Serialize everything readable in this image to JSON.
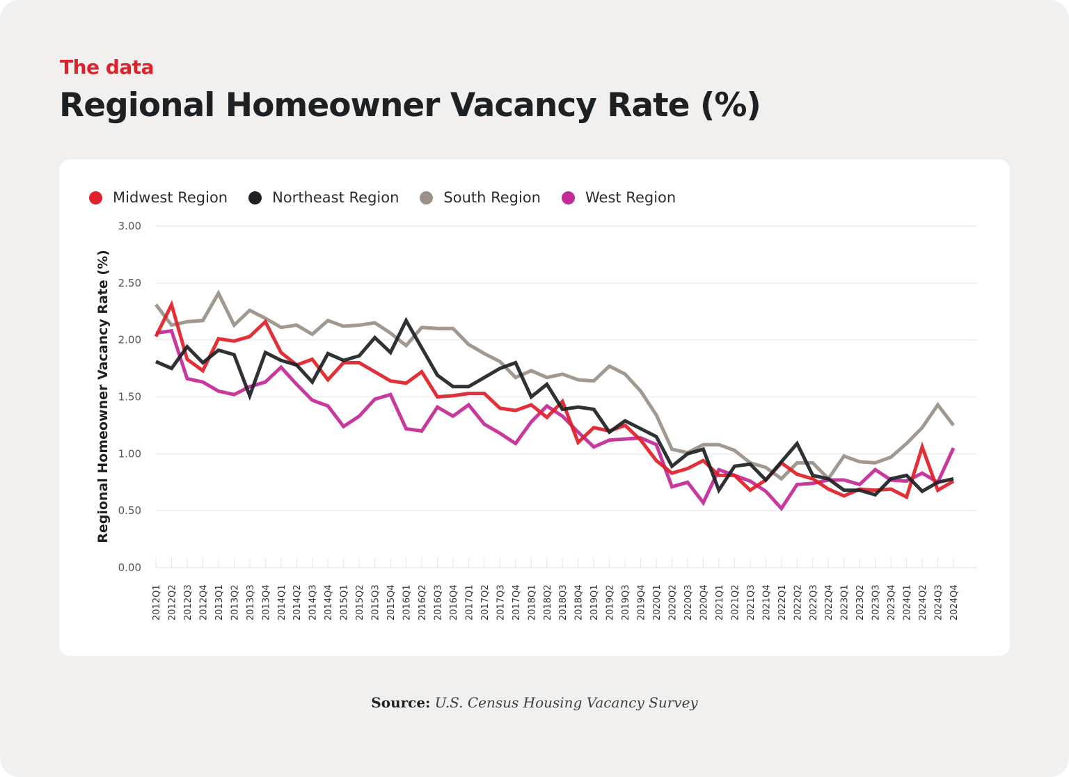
{
  "header": {
    "kicker": "The data",
    "title": "Regional Homeowner Vacancy Rate (%)"
  },
  "source": {
    "label": "Source:",
    "text": "U.S. Census Housing Vacancy Survey"
  },
  "colors": {
    "Midwest Region": "#e0202a",
    "Northeast Region": "#1e2226",
    "South Region": "#9a9088",
    "West Region": "#c42a96"
  },
  "chart_data": {
    "type": "line",
    "title": "Regional Homeowner Vacancy Rate (%)",
    "xlabel": "",
    "ylabel": "Regional Homeowner Vacancy Rate (%)",
    "ylim": [
      0,
      3
    ],
    "yticks": [
      "0.00",
      "0.50",
      "1.00",
      "1.50",
      "2.00",
      "2.50",
      "3.00"
    ],
    "grid": "horizontal",
    "legend": "top-left",
    "categories": [
      "2012Q1",
      "2012Q2",
      "2012Q3",
      "2012Q4",
      "2013Q1",
      "2013Q2",
      "2013Q3",
      "2013Q4",
      "2014Q1",
      "2014Q2",
      "2014Q3",
      "2014Q4",
      "2015Q1",
      "2015Q2",
      "2015Q3",
      "2015Q4",
      "2016Q1",
      "2016Q2",
      "2016Q3",
      "2016Q4",
      "2017Q1",
      "2017Q2",
      "2017Q3",
      "2017Q4",
      "2018Q1",
      "2018Q2",
      "2018Q3",
      "2018Q4",
      "2019Q1",
      "2019Q2",
      "2019Q3",
      "2019Q4",
      "2020Q1",
      "2020Q2",
      "2020Q3",
      "2020Q4",
      "2021Q1",
      "2021Q2",
      "2021Q3",
      "2021Q4",
      "2022Q1",
      "2022Q2",
      "2022Q3",
      "2022Q4",
      "2023Q1",
      "2023Q2",
      "2023Q3",
      "2023Q4",
      "2024Q1",
      "2024Q2",
      "2024Q3",
      "2024Q4"
    ],
    "series": [
      {
        "name": "Midwest Region",
        "values": [
          2.03,
          2.31,
          1.83,
          1.73,
          2.01,
          1.99,
          2.03,
          2.16,
          1.89,
          1.78,
          1.83,
          1.65,
          1.8,
          1.8,
          1.72,
          1.64,
          1.62,
          1.72,
          1.5,
          1.51,
          1.53,
          1.53,
          1.4,
          1.38,
          1.43,
          1.32,
          1.46,
          1.1,
          1.23,
          1.2,
          1.25,
          1.12,
          0.94,
          0.83,
          0.87,
          0.94,
          0.81,
          0.81,
          0.68,
          0.77,
          0.92,
          0.82,
          0.78,
          0.69,
          0.63,
          0.69,
          0.68,
          0.69,
          0.62,
          1.06,
          0.68,
          0.76
        ]
      },
      {
        "name": "Northeast Region",
        "values": [
          1.81,
          1.75,
          1.94,
          1.8,
          1.91,
          1.87,
          1.51,
          1.89,
          1.82,
          1.78,
          1.63,
          1.88,
          1.82,
          1.86,
          2.02,
          1.89,
          2.17,
          1.93,
          1.69,
          1.59,
          1.59,
          1.67,
          1.75,
          1.8,
          1.5,
          1.61,
          1.39,
          1.41,
          1.39,
          1.19,
          1.29,
          1.22,
          1.15,
          0.89,
          1.0,
          1.04,
          0.68,
          0.89,
          0.91,
          0.77,
          0.93,
          1.09,
          0.81,
          0.78,
          0.68,
          0.68,
          0.64,
          0.78,
          0.81,
          0.67,
          0.75,
          0.78
        ]
      },
      {
        "name": "South Region",
        "values": [
          2.31,
          2.13,
          2.16,
          2.17,
          2.41,
          2.13,
          2.26,
          2.19,
          2.11,
          2.13,
          2.05,
          2.17,
          2.12,
          2.13,
          2.15,
          2.06,
          1.95,
          2.11,
          2.1,
          2.1,
          1.96,
          1.88,
          1.81,
          1.67,
          1.73,
          1.67,
          1.7,
          1.65,
          1.64,
          1.77,
          1.7,
          1.55,
          1.34,
          1.04,
          1.01,
          1.08,
          1.08,
          1.03,
          0.92,
          0.88,
          0.78,
          0.92,
          0.92,
          0.78,
          0.98,
          0.93,
          0.92,
          0.97,
          1.09,
          1.23,
          1.43,
          1.25
        ]
      },
      {
        "name": "West Region",
        "values": [
          2.06,
          2.08,
          1.66,
          1.63,
          1.55,
          1.52,
          1.59,
          1.63,
          1.76,
          1.61,
          1.47,
          1.42,
          1.24,
          1.33,
          1.48,
          1.52,
          1.22,
          1.2,
          1.41,
          1.33,
          1.43,
          1.26,
          1.18,
          1.09,
          1.28,
          1.42,
          1.33,
          1.19,
          1.06,
          1.12,
          1.13,
          1.14,
          1.08,
          0.71,
          0.75,
          0.57,
          0.86,
          0.81,
          0.76,
          0.67,
          0.52,
          0.73,
          0.74,
          0.77,
          0.77,
          0.73,
          0.86,
          0.77,
          0.76,
          0.83,
          0.75,
          1.05
        ]
      }
    ]
  }
}
